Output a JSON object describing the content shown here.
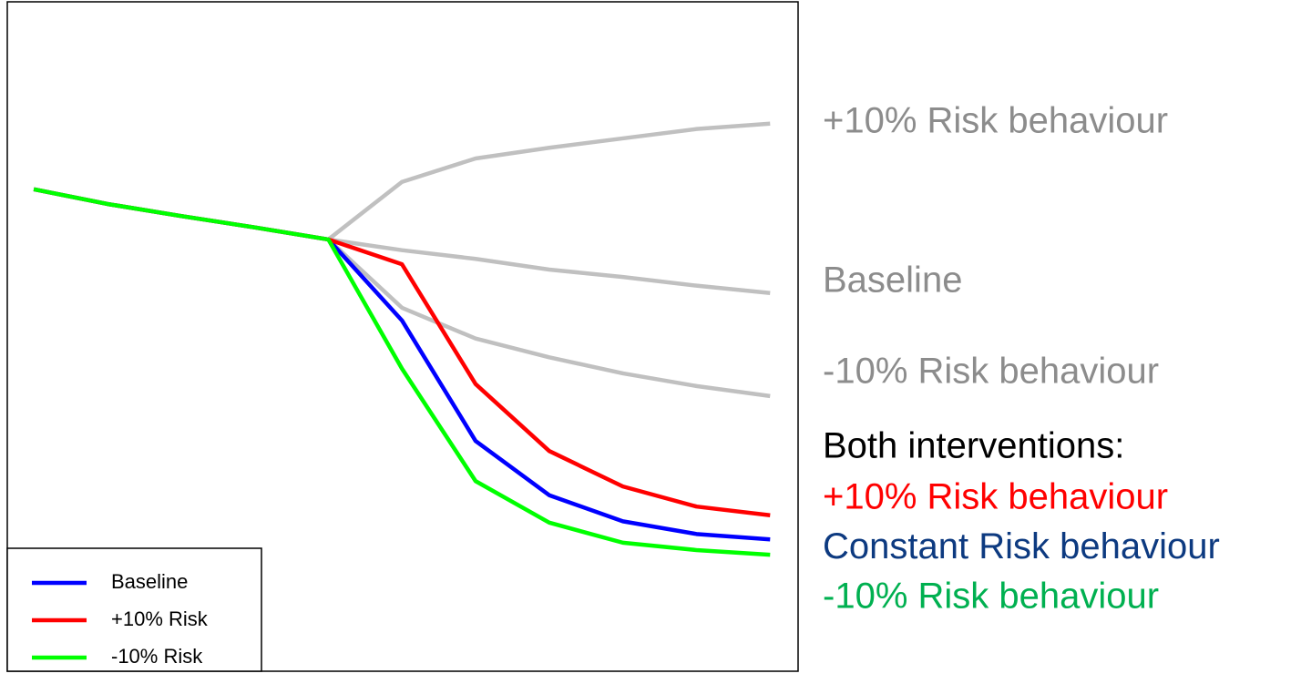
{
  "chart_data": {
    "type": "line",
    "x": [
      0,
      1,
      2,
      3,
      4,
      5,
      6,
      7,
      8,
      9,
      10
    ],
    "xlim": [
      -0.36,
      10.38
    ],
    "ylim": [
      0,
      100
    ],
    "background_series": [
      {
        "label": "+10% Risk behaviour",
        "color": "#c0c0c0",
        "values": [
          null,
          null,
          null,
          null,
          64.5,
          73.1,
          76.6,
          78.2,
          79.6,
          81.0,
          81.8
        ]
      },
      {
        "label": "Baseline",
        "color": "#c0c0c0",
        "values": [
          null,
          null,
          null,
          null,
          64.5,
          62.9,
          61.6,
          60.0,
          58.9,
          57.6,
          56.5
        ]
      },
      {
        "label": "-10% Risk behaviour",
        "color": "#c0c0c0",
        "values": [
          null,
          null,
          null,
          null,
          64.5,
          54.3,
          49.7,
          46.9,
          44.5,
          42.6,
          41.1
        ]
      }
    ],
    "series": [
      {
        "name": "Baseline",
        "color": "#0000ff",
        "values": [
          72.0,
          69.8,
          68.0,
          66.3,
          64.5,
          52.4,
          34.4,
          26.3,
          22.4,
          20.5,
          19.7
        ]
      },
      {
        "name": "+10% Risk",
        "color": "#ff0000",
        "values": [
          72.0,
          69.8,
          68.0,
          66.3,
          64.5,
          60.8,
          42.9,
          32.9,
          27.6,
          24.6,
          23.3
        ]
      },
      {
        "name": "-10% Risk",
        "color": "#00ff00",
        "values": [
          72.0,
          69.8,
          68.0,
          66.3,
          64.5,
          45.2,
          28.4,
          22.2,
          19.2,
          18.1,
          17.4
        ]
      }
    ],
    "annotation_color": "#8c8c8c",
    "annotation_heading": {
      "text": "Both interventions:",
      "color": "#000000"
    },
    "annotations": [
      {
        "text": "+10% Risk behaviour",
        "color": "#ff0000"
      },
      {
        "text": "Constant Risk behaviour",
        "color": "#0d3a80"
      },
      {
        "text": "-10% Risk behaviour",
        "color": "#00b050"
      }
    ],
    "legend": "lower left"
  }
}
